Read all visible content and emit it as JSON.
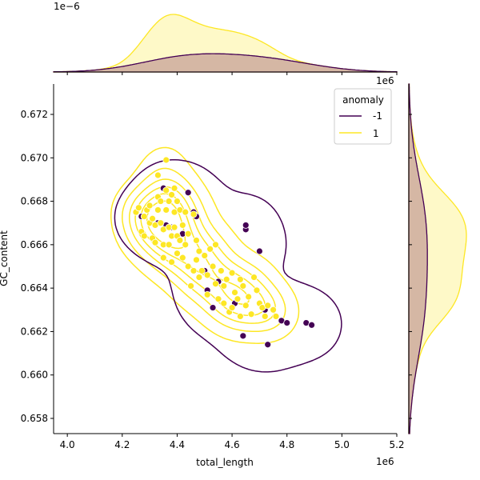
{
  "chart_data": {
    "type": "scatter",
    "title": "",
    "xlabel": "total_length",
    "ylabel": "GC_content",
    "x_offset_label": "1e6",
    "y_offset_label": "",
    "top_marginal_offset_label": "1e−6",
    "right_marginal_offset_label": "1e6",
    "xlim": [
      3.95,
      5.2
    ],
    "ylim": [
      0.6573,
      0.6734
    ],
    "x_ticks": [
      4.0,
      4.2,
      4.4,
      4.6,
      4.8,
      5.0,
      5.2
    ],
    "x_tick_labels": [
      "4.0",
      "4.2",
      "4.4",
      "4.6",
      "4.8",
      "5.0",
      "5.2"
    ],
    "y_ticks": [
      0.658,
      0.66,
      0.662,
      0.664,
      0.666,
      0.668,
      0.67,
      0.672
    ],
    "y_tick_labels": [
      "0.658",
      "0.660",
      "0.662",
      "0.664",
      "0.666",
      "0.668",
      "0.670",
      "0.672"
    ],
    "grid": false,
    "legend": {
      "title": "anomaly",
      "placement": "top-right",
      "entries": [
        {
          "label": "-1",
          "color": "#440154"
        },
        {
          "label": "1",
          "color": "#fde725"
        }
      ]
    },
    "colors": {
      "anomaly_neg": "#440154",
      "normal": "#fde725",
      "normal_fill": "#fef9c8",
      "anomaly_fill": "#d5b7a4"
    },
    "series": [
      {
        "name": "-1",
        "color": "#440154",
        "points": [
          [
            4.27,
            0.6673
          ],
          [
            4.33,
            0.667
          ],
          [
            4.35,
            0.6686
          ],
          [
            4.36,
            0.6669
          ],
          [
            4.38,
            0.6668
          ],
          [
            4.42,
            0.6665
          ],
          [
            4.44,
            0.6684
          ],
          [
            4.46,
            0.6675
          ],
          [
            4.47,
            0.6673
          ],
          [
            4.5,
            0.6648
          ],
          [
            4.51,
            0.6639
          ],
          [
            4.53,
            0.6631
          ],
          [
            4.55,
            0.6643
          ],
          [
            4.61,
            0.6633
          ],
          [
            4.64,
            0.6618
          ],
          [
            4.65,
            0.6667
          ],
          [
            4.65,
            0.6669
          ],
          [
            4.7,
            0.6657
          ],
          [
            4.72,
            0.663
          ],
          [
            4.73,
            0.6614
          ],
          [
            4.78,
            0.6625
          ],
          [
            4.8,
            0.6624
          ],
          [
            4.87,
            0.6624
          ],
          [
            4.89,
            0.6623
          ]
        ]
      },
      {
        "name": "1",
        "color": "#fde725",
        "points": [
          [
            4.25,
            0.6675
          ],
          [
            4.26,
            0.6677
          ],
          [
            4.27,
            0.6666
          ],
          [
            4.28,
            0.6673
          ],
          [
            4.28,
            0.6664
          ],
          [
            4.29,
            0.6676
          ],
          [
            4.3,
            0.6678
          ],
          [
            4.3,
            0.667
          ],
          [
            4.31,
            0.6672
          ],
          [
            4.31,
            0.6663
          ],
          [
            4.32,
            0.6669
          ],
          [
            4.32,
            0.6661
          ],
          [
            4.33,
            0.6692
          ],
          [
            4.33,
            0.6682
          ],
          [
            4.33,
            0.6676
          ],
          [
            4.34,
            0.668
          ],
          [
            4.34,
            0.667
          ],
          [
            4.35,
            0.6667
          ],
          [
            4.35,
            0.666
          ],
          [
            4.35,
            0.6654
          ],
          [
            4.36,
            0.6699
          ],
          [
            4.36,
            0.6685
          ],
          [
            4.36,
            0.6676
          ],
          [
            4.37,
            0.668
          ],
          [
            4.37,
            0.6668
          ],
          [
            4.37,
            0.666
          ],
          [
            4.38,
            0.6683
          ],
          [
            4.38,
            0.6664
          ],
          [
            4.38,
            0.6652
          ],
          [
            4.39,
            0.6686
          ],
          [
            4.39,
            0.6675
          ],
          [
            4.39,
            0.6668
          ],
          [
            4.4,
            0.668
          ],
          [
            4.4,
            0.6664
          ],
          [
            4.4,
            0.6656
          ],
          [
            4.41,
            0.6676
          ],
          [
            4.41,
            0.6662
          ],
          [
            4.42,
            0.6669
          ],
          [
            4.42,
            0.6654
          ],
          [
            4.43,
            0.6675
          ],
          [
            4.43,
            0.666
          ],
          [
            4.44,
            0.6665
          ],
          [
            4.44,
            0.665
          ],
          [
            4.45,
            0.6641
          ],
          [
            4.46,
            0.6674
          ],
          [
            4.46,
            0.6648
          ],
          [
            4.47,
            0.6662
          ],
          [
            4.47,
            0.6653
          ],
          [
            4.48,
            0.6657
          ],
          [
            4.48,
            0.6645
          ],
          [
            4.49,
            0.6648
          ],
          [
            4.5,
            0.6655
          ],
          [
            4.51,
            0.6646
          ],
          [
            4.51,
            0.6637
          ],
          [
            4.52,
            0.6658
          ],
          [
            4.53,
            0.665
          ],
          [
            4.54,
            0.666
          ],
          [
            4.54,
            0.6642
          ],
          [
            4.55,
            0.6635
          ],
          [
            4.56,
            0.6648
          ],
          [
            4.57,
            0.6641
          ],
          [
            4.57,
            0.6633
          ],
          [
            4.58,
            0.6644
          ],
          [
            4.59,
            0.6629
          ],
          [
            4.6,
            0.6647
          ],
          [
            4.6,
            0.6631
          ],
          [
            4.61,
            0.6638
          ],
          [
            4.62,
            0.6635
          ],
          [
            4.63,
            0.6644
          ],
          [
            4.63,
            0.6627
          ],
          [
            4.64,
            0.6641
          ],
          [
            4.65,
            0.6632
          ],
          [
            4.66,
            0.6636
          ],
          [
            4.67,
            0.6628
          ],
          [
            4.68,
            0.6645
          ],
          [
            4.69,
            0.6639
          ],
          [
            4.7,
            0.6633
          ],
          [
            4.71,
            0.6631
          ],
          [
            4.72,
            0.6627
          ],
          [
            4.73,
            0.6632
          ],
          [
            4.75,
            0.663
          ],
          [
            4.76,
            0.6627
          ]
        ]
      }
    ]
  }
}
